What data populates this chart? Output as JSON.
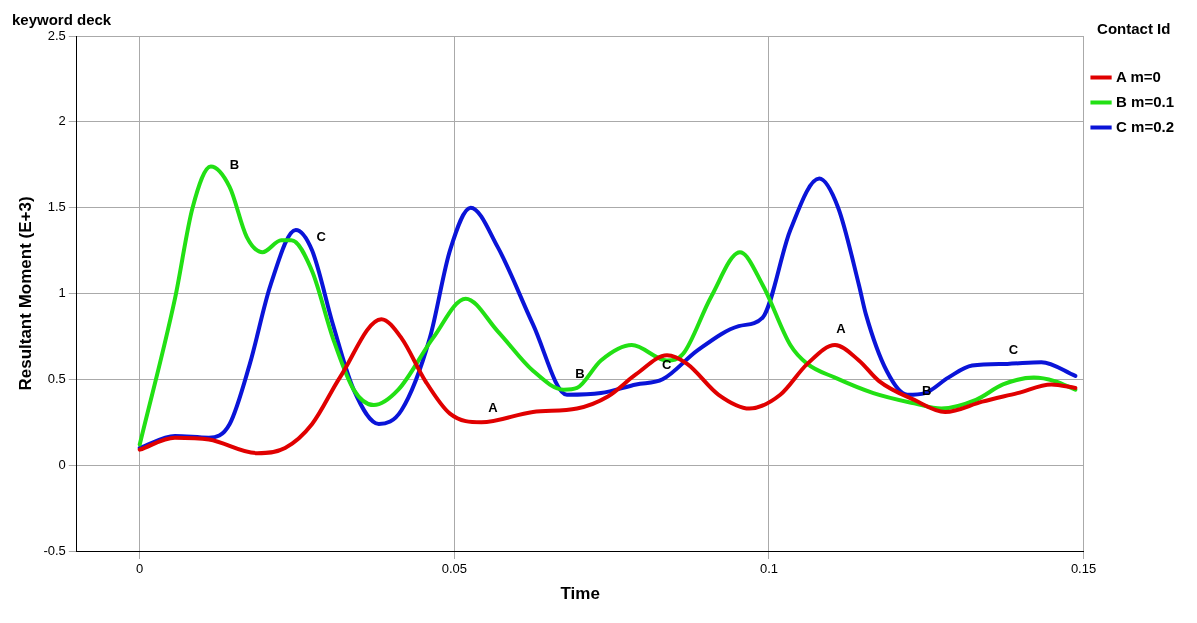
{
  "chart_data": {
    "type": "line",
    "title": "keyword deck",
    "xlabel": "Time",
    "ylabel": "Resultant Moment (E+3)",
    "legend_title": "Contact Id",
    "legend": "top right",
    "grid": true,
    "marker": "none",
    "line_style": "solid",
    "xlim": [
      -0.01,
      0.15
    ],
    "xticks": [
      0,
      0.05,
      0.1,
      0.15
    ],
    "ylim": [
      -0.5,
      2.5
    ],
    "yticks": [
      -0.5,
      0,
      0.5,
      1,
      1.5,
      2,
      2.5
    ],
    "series": [
      {
        "name": "A m=0",
        "color": "#e00000",
        "x": [
          0,
          0.0056,
          0.011,
          0.0187,
          0.0231,
          0.0274,
          0.0318,
          0.0384,
          0.0416,
          0.0454,
          0.0493,
          0.0543,
          0.0625,
          0.0695,
          0.0744,
          0.0789,
          0.0838,
          0.087,
          0.092,
          0.0969,
          0.1018,
          0.1061,
          0.1105,
          0.1143,
          0.1175,
          0.1231,
          0.128,
          0.1339,
          0.1395,
          0.1449,
          0.1487
        ],
        "values": [
          0.09,
          0.16,
          0.15,
          0.07,
          0.1,
          0.24,
          0.51,
          0.85,
          0.74,
          0.49,
          0.3,
          0.25,
          0.31,
          0.33,
          0.4,
          0.53,
          0.64,
          0.59,
          0.41,
          0.33,
          0.41,
          0.59,
          0.7,
          0.61,
          0.49,
          0.38,
          0.31,
          0.37,
          0.42,
          0.47,
          0.45
        ]
      },
      {
        "name": "B m=0.1",
        "color": "#22e014",
        "x": [
          0,
          0.0056,
          0.0084,
          0.0113,
          0.0143,
          0.017,
          0.0195,
          0.0225,
          0.0241,
          0.0274,
          0.0307,
          0.034,
          0.0372,
          0.0411,
          0.0466,
          0.0518,
          0.0569,
          0.0625,
          0.0674,
          0.0695,
          0.0733,
          0.0782,
          0.0838,
          0.0864,
          0.0908,
          0.0954,
          0.099,
          0.1034,
          0.1061,
          0.1105,
          0.1166,
          0.1231,
          0.1274,
          0.1329,
          0.1372,
          0.1421,
          0.1454,
          0.1487
        ],
        "values": [
          0.12,
          0.97,
          1.5,
          1.74,
          1.62,
          1.33,
          1.24,
          1.31,
          1.31,
          1.13,
          0.74,
          0.44,
          0.35,
          0.44,
          0.74,
          0.97,
          0.78,
          0.55,
          0.44,
          0.45,
          0.61,
          0.7,
          0.61,
          0.65,
          0.98,
          1.24,
          1.05,
          0.7,
          0.59,
          0.51,
          0.42,
          0.36,
          0.33,
          0.38,
          0.47,
          0.51,
          0.49,
          0.44
        ]
      },
      {
        "name": "C m=0.2",
        "color": "#0a14d8",
        "x": [
          0,
          0.0056,
          0.011,
          0.0143,
          0.0175,
          0.0208,
          0.0248,
          0.0274,
          0.0307,
          0.034,
          0.038,
          0.0416,
          0.0461,
          0.0493,
          0.0526,
          0.0569,
          0.0625,
          0.0679,
          0.0733,
          0.0789,
          0.0831,
          0.0887,
          0.0952,
          0.099,
          0.1034,
          0.108,
          0.111,
          0.1143,
          0.1154,
          0.1187,
          0.122,
          0.1248,
          0.1285,
          0.1323,
          0.1379,
          0.1433,
          0.1487
        ],
        "values": [
          0.1,
          0.17,
          0.16,
          0.24,
          0.59,
          1.05,
          1.37,
          1.25,
          0.82,
          0.44,
          0.24,
          0.32,
          0.74,
          1.25,
          1.5,
          1.27,
          0.82,
          0.41,
          0.42,
          0.47,
          0.5,
          0.67,
          0.81,
          0.86,
          1.37,
          1.67,
          1.5,
          1.05,
          0.88,
          0.55,
          0.41,
          0.42,
          0.51,
          0.58,
          0.59,
          0.6,
          0.52
        ]
      }
    ],
    "annotations": [
      {
        "text": "B",
        "x": 0.0141,
        "y": 1.69
      },
      {
        "text": "C",
        "x": 0.0279,
        "y": 1.27
      },
      {
        "text": "A",
        "x": 0.0552,
        "y": 0.27
      },
      {
        "text": "B",
        "x": 0.069,
        "y": 0.47
      },
      {
        "text": "C",
        "x": 0.0828,
        "y": 0.52
      },
      {
        "text": "A",
        "x": 0.1105,
        "y": 0.73
      },
      {
        "text": "B",
        "x": 0.1241,
        "y": 0.37
      },
      {
        "text": "C",
        "x": 0.1379,
        "y": 0.61
      }
    ]
  }
}
